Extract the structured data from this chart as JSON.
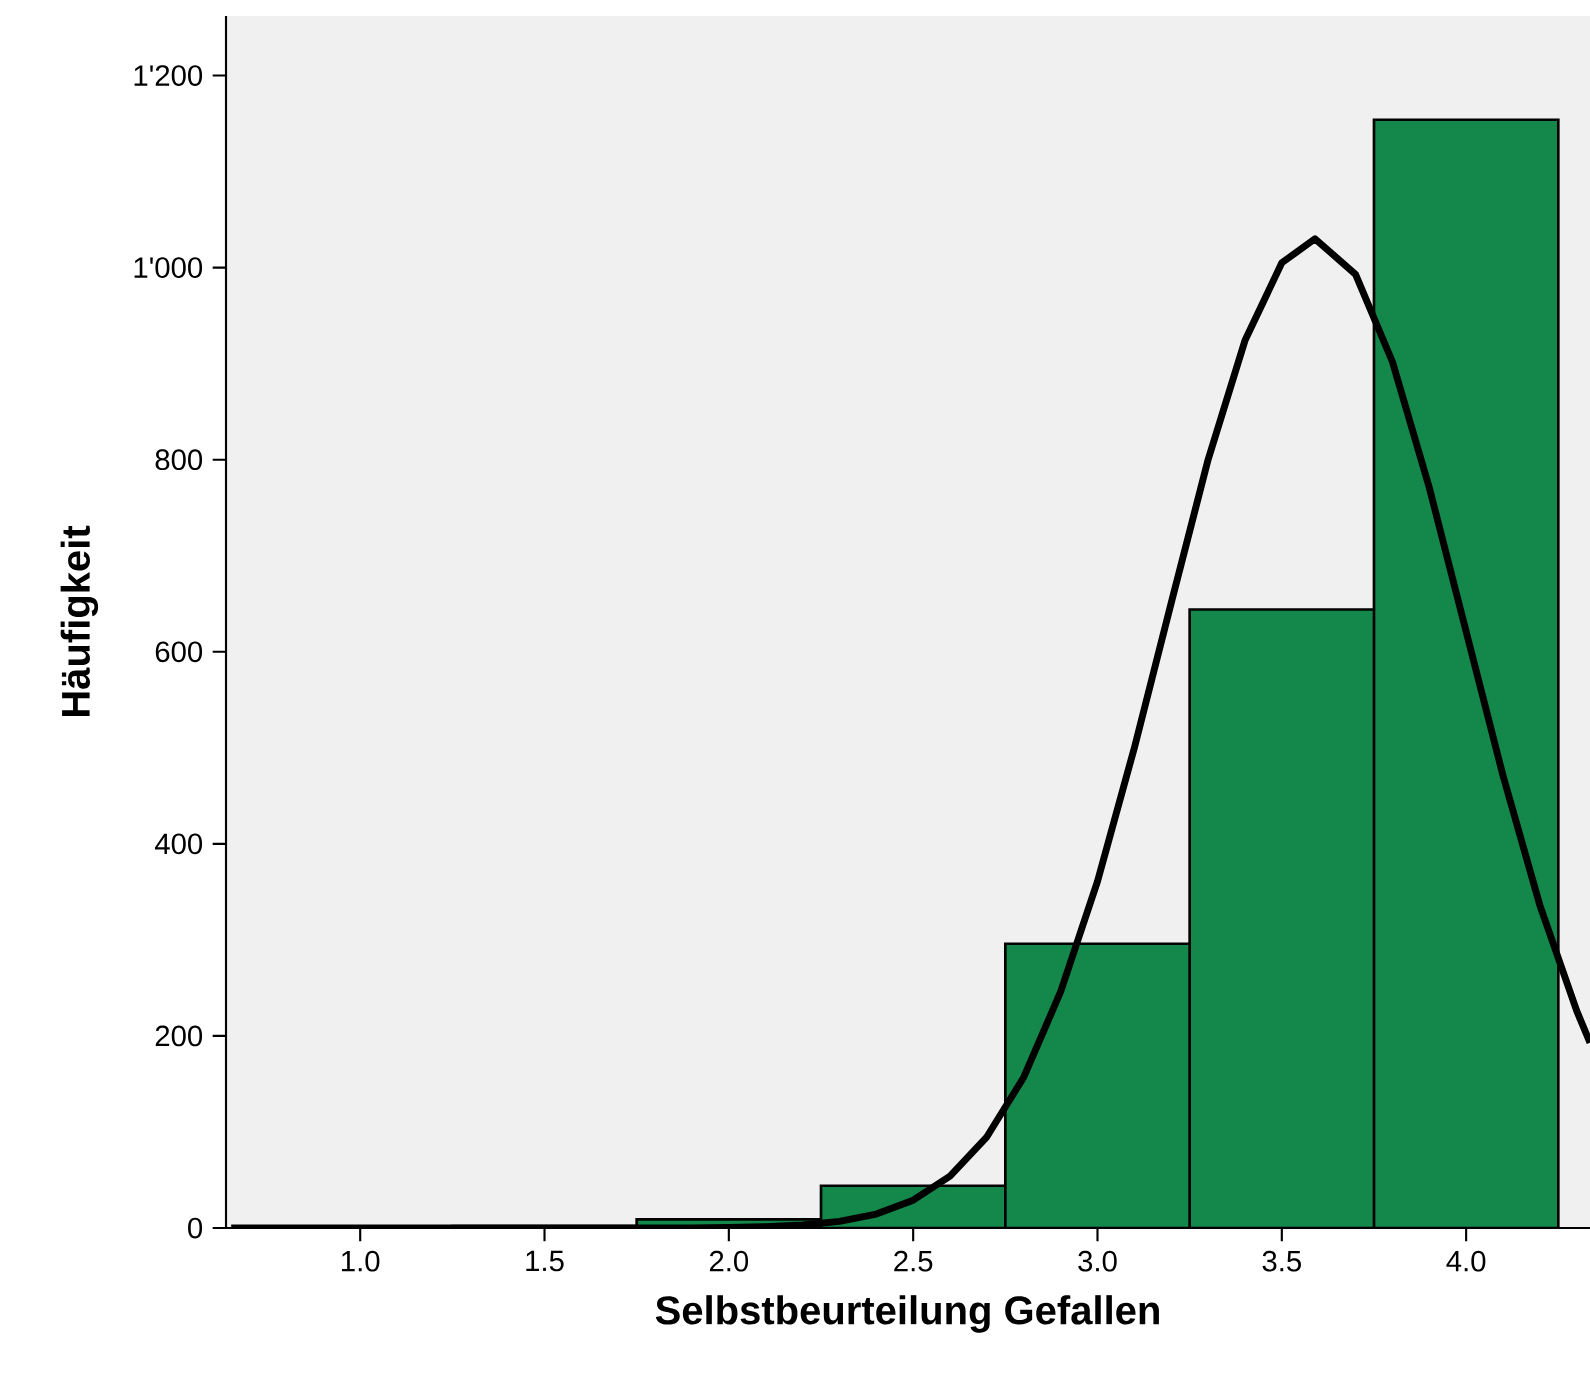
{
  "chart_data": {
    "type": "histogram",
    "xlabel": "Selbstbeurteilung Gefallen",
    "ylabel": "Häufigkeit",
    "bins": [
      0.75,
      1.25,
      1.75,
      2.25,
      2.75,
      3.25,
      3.75,
      4.25
    ],
    "values": [
      1,
      2,
      9,
      44,
      296,
      644,
      1154
    ],
    "color": "#13884a",
    "series": [
      {
        "type": "line",
        "color": "#000000",
        "x": [
          0.65,
          1.9,
          2.0,
          2.1,
          2.2,
          2.3,
          2.4,
          2.5,
          2.6,
          2.7,
          2.8,
          2.9,
          3.0,
          3.1,
          3.2,
          3.3,
          3.4,
          3.5,
          3.59,
          3.7,
          3.8,
          3.9,
          4.0,
          4.1,
          4.2,
          4.3,
          4.336
        ],
        "values": [
          0,
          0,
          0.5,
          1.3,
          3.1,
          6.9,
          14.5,
          29,
          54,
          95,
          157,
          246,
          361,
          500,
          651,
          800,
          924,
          1005,
          1030,
          993,
          902,
          771,
          621,
          471,
          336,
          226,
          193
        ]
      }
    ],
    "xlim": [
      0.636,
      4.336
    ],
    "ylim": [
      0,
      1262
    ],
    "xticks": [
      {
        "value": 1.0,
        "label": "1.0"
      },
      {
        "value": 1.5,
        "label": "1.5"
      },
      {
        "value": 2.0,
        "label": "2.0"
      },
      {
        "value": 2.5,
        "label": "2.5"
      },
      {
        "value": 3.0,
        "label": "3.0"
      },
      {
        "value": 3.5,
        "label": "3.5"
      },
      {
        "value": 4.0,
        "label": "4.0"
      }
    ],
    "yticks": [
      0,
      200,
      400,
      600,
      800,
      {
        "value": 1000,
        "label": "1'000"
      },
      {
        "value": 1200,
        "label": "1'200"
      }
    ]
  }
}
